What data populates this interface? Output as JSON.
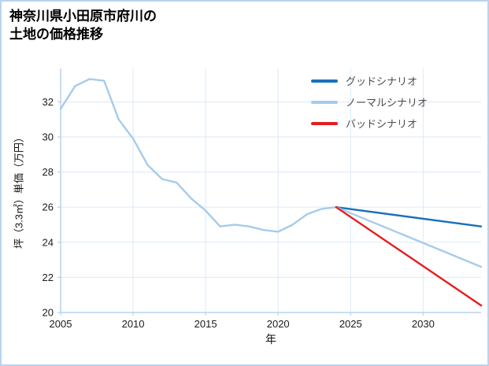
{
  "header": {
    "title_lines": [
      "神奈川県小田原市府川の",
      "土地の価格推移"
    ]
  },
  "chart_data": {
    "type": "line",
    "title": "神奈川県小田原市府川の土地の価格推移",
    "xlabel": "年",
    "ylabel": "坪（3.3㎡）単価（万円）",
    "xlim": [
      2005,
      2034
    ],
    "ylim": [
      20,
      33.9
    ],
    "xticks": [
      2005,
      2010,
      2015,
      2020,
      2025,
      2030
    ],
    "yticks": [
      20,
      22,
      24,
      26,
      28,
      30,
      32
    ],
    "grid": true,
    "legend_position": "upper-right",
    "colors": {
      "grid": "#dce9f6",
      "axis": "#b7d2ee",
      "tick_text": "#1a1a1a",
      "frame_border": "#bad3ee"
    },
    "history": {
      "color": "#a6cbec",
      "x": [
        2005,
        2006,
        2007,
        2008,
        2009,
        2010,
        2011,
        2012,
        2013,
        2014,
        2015,
        2016,
        2017,
        2018,
        2019,
        2020,
        2021,
        2022,
        2023,
        2024
      ],
      "values": [
        31.6,
        32.9,
        33.3,
        33.2,
        31.0,
        29.9,
        28.4,
        27.6,
        27.4,
        26.5,
        25.8,
        24.9,
        25.0,
        24.9,
        24.7,
        24.6,
        25.0,
        25.6,
        25.9,
        26.0
      ]
    },
    "scenarios": [
      {
        "label": "グッドシナリオ",
        "color": "#1971bc",
        "x": [
          2024,
          2034
        ],
        "values": [
          26.0,
          24.9
        ]
      },
      {
        "label": "ノーマルシナリオ",
        "color": "#a6cbec",
        "x": [
          2024,
          2034
        ],
        "values": [
          26.0,
          22.6
        ]
      },
      {
        "label": "バッドシナリオ",
        "color": "#e41d1f",
        "x": [
          2024,
          2034
        ],
        "values": [
          26.0,
          20.4
        ]
      }
    ]
  }
}
